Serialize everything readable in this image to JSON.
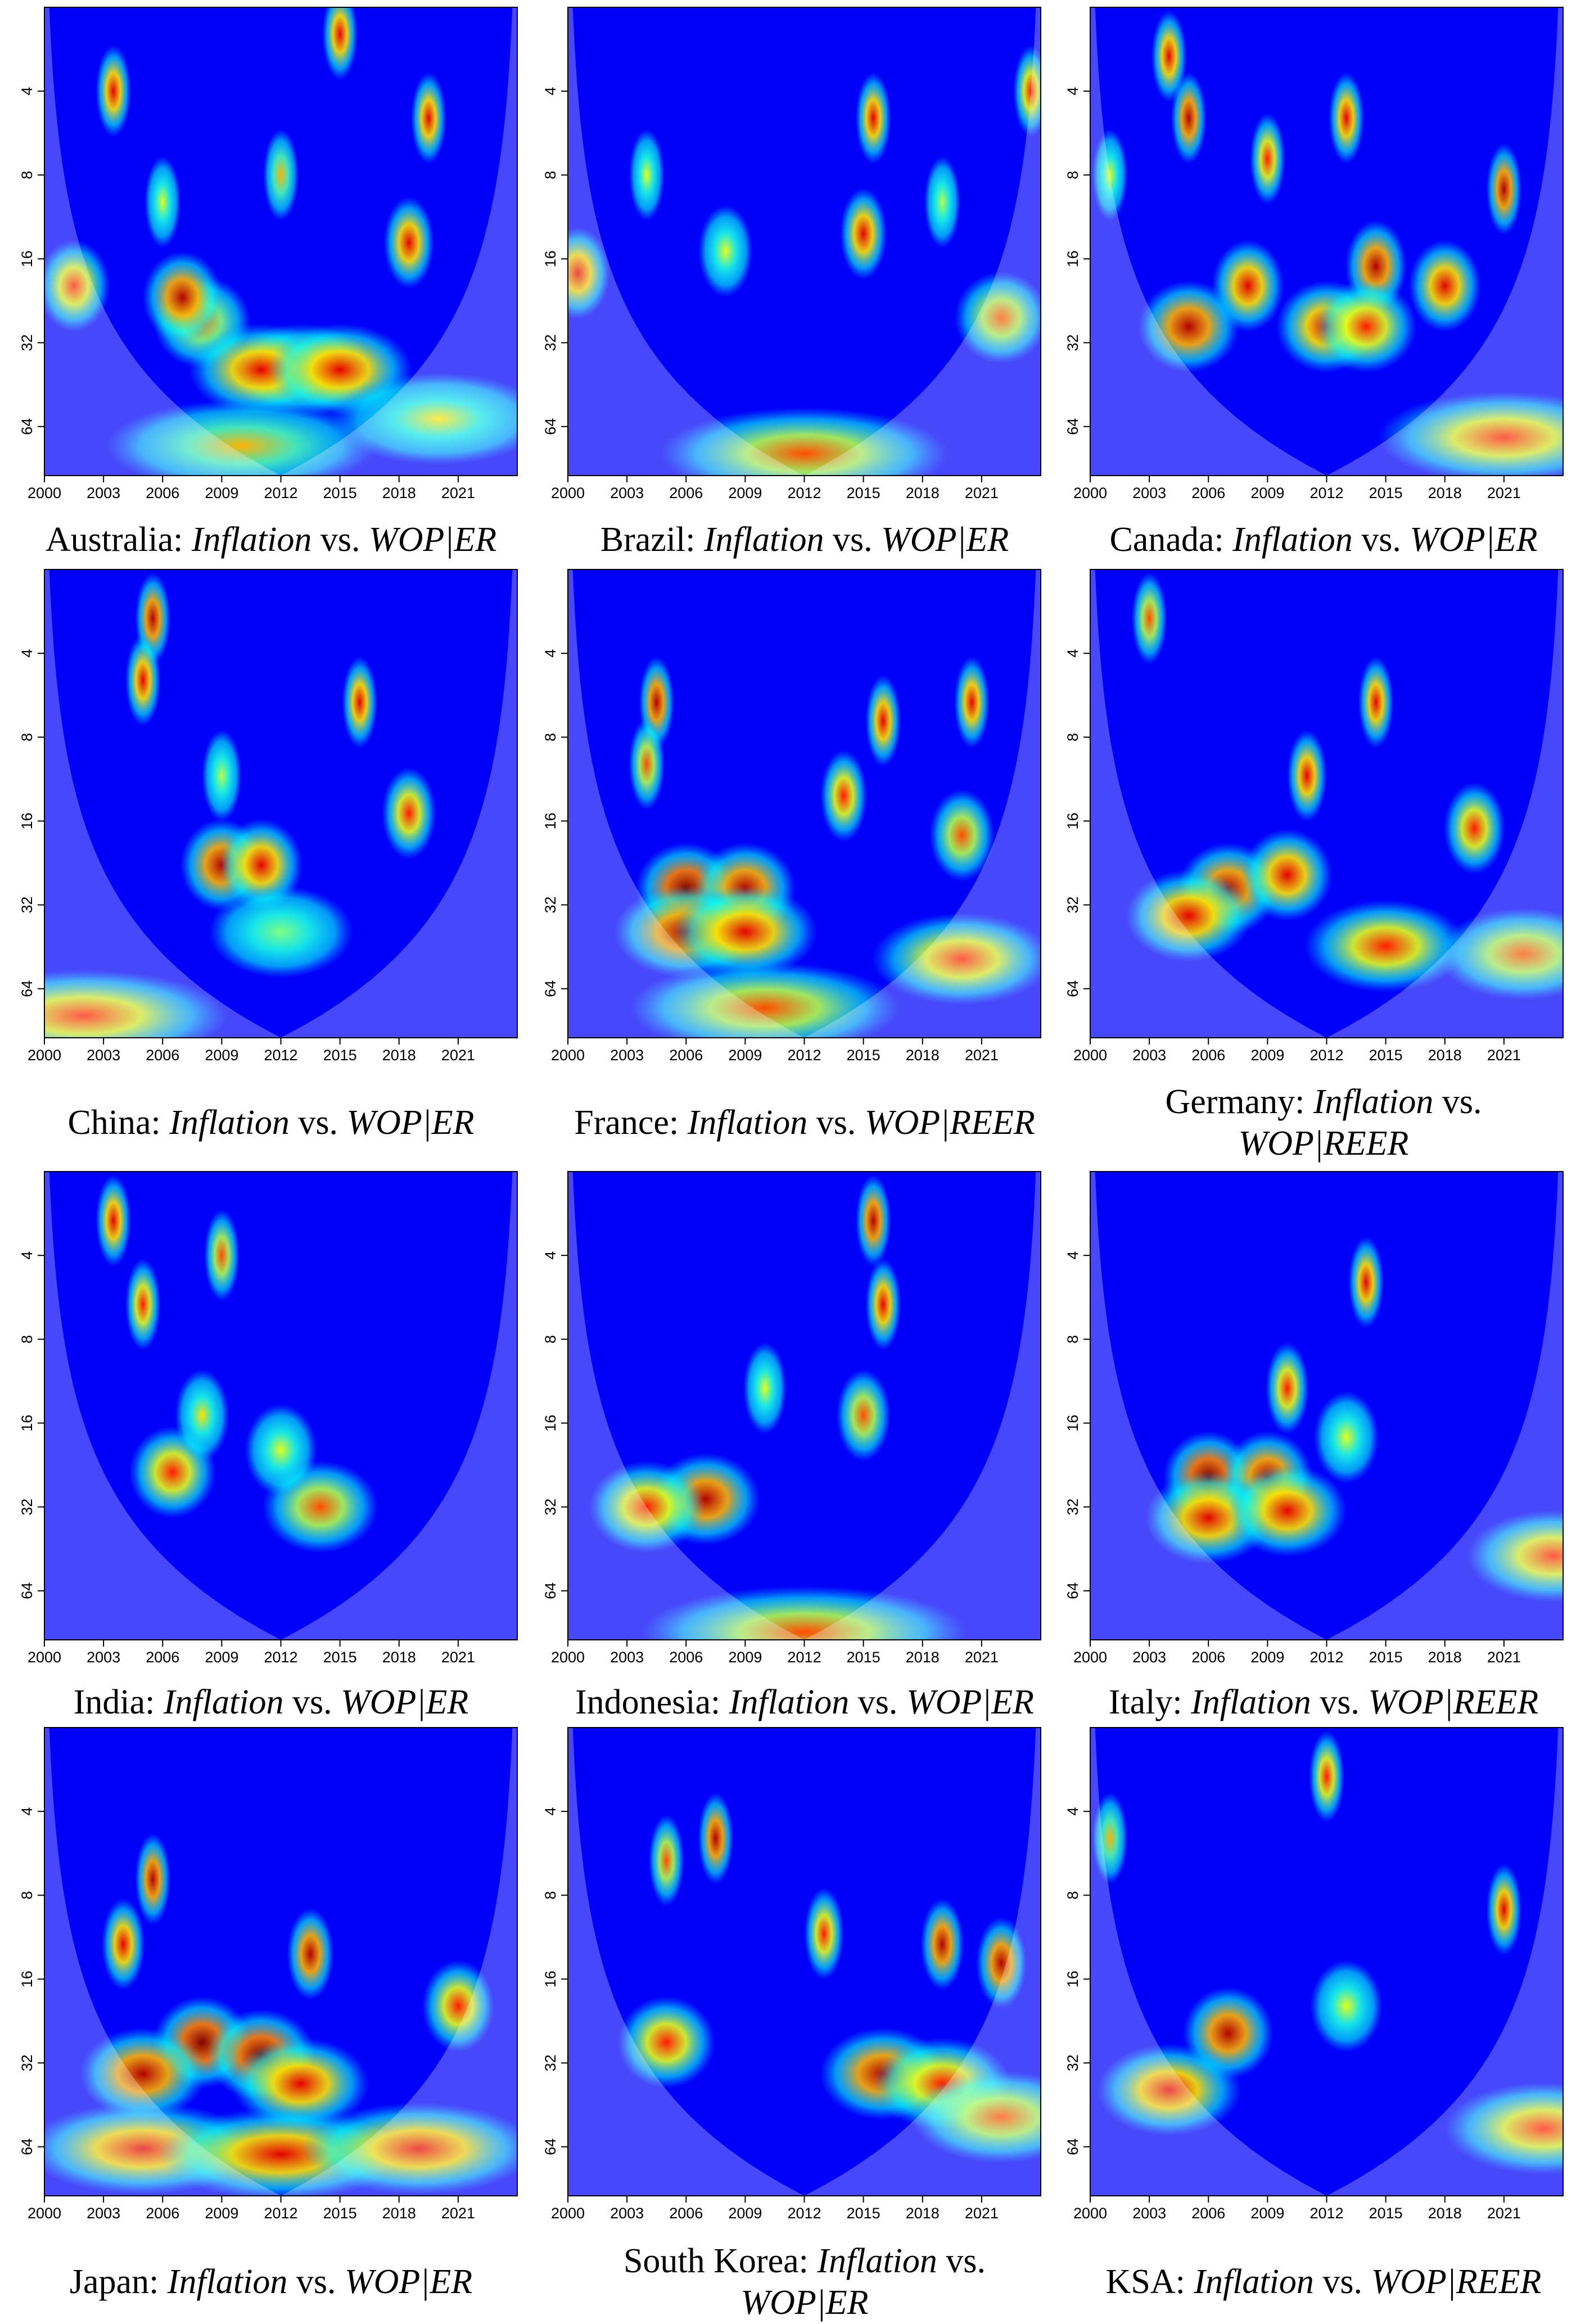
{
  "chart_data": [
    {
      "type": "heatmap",
      "colormap": "jet",
      "log_y": true,
      "y_reversed": true,
      "title": {
        "country": "Australia:",
        "variable": "Inflation",
        "vs": "vs.",
        "pair": "WOP|ER"
      },
      "x": [
        2003.5,
        2019.5,
        2015,
        2008,
        2007,
        2013,
        2011,
        2015,
        2018.5,
        2001.5,
        2012,
        2006,
        2010,
        2020
      ],
      "y": [
        4,
        5,
        2.5,
        27,
        22,
        40,
        40,
        40,
        14,
        20,
        8,
        10,
        75,
        60
      ],
      "values": [
        0.9,
        0.9,
        0.9,
        0.75,
        0.95,
        0.95,
        0.9,
        0.9,
        0.9,
        0.85,
        0.7,
        0.6,
        0.7,
        0.65
      ],
      "xlim": [
        2000,
        2024
      ],
      "ylim": [
        2,
        96
      ],
      "xticks": [
        2000,
        2003,
        2006,
        2009,
        2012,
        2015,
        2018,
        2021
      ],
      "yticks": [
        4,
        8,
        16,
        32,
        64
      ]
    },
    {
      "type": "heatmap",
      "colormap": "jet",
      "log_y": true,
      "y_reversed": true,
      "title": {
        "country": "Brazil:",
        "variable": "Inflation",
        "vs": "vs.",
        "pair": "WOP|ER"
      },
      "x": [
        2015.5,
        2015,
        2000.5,
        2022,
        2023.5,
        2008,
        2012,
        2004,
        2019
      ],
      "y": [
        5,
        13,
        18,
        26,
        4,
        15,
        80,
        8,
        10
      ],
      "values": [
        0.9,
        0.9,
        0.9,
        0.8,
        0.85,
        0.6,
        0.8,
        0.6,
        0.55
      ],
      "xlim": [
        2000,
        2024
      ],
      "ylim": [
        2,
        96
      ],
      "xticks": [
        2000,
        2003,
        2006,
        2009,
        2012,
        2015,
        2018,
        2021
      ],
      "yticks": [
        4,
        8,
        16,
        32,
        64
      ]
    },
    {
      "type": "heatmap",
      "colormap": "jet",
      "log_y": true,
      "y_reversed": true,
      "title": {
        "country": "Canada:",
        "variable": "Inflation",
        "vs": "vs.",
        "pair": "WOP|ER"
      },
      "x": [
        2005,
        2004,
        2013,
        2009,
        2021,
        2014.5,
        2018,
        2008,
        2005,
        2012,
        2014,
        2021,
        2001
      ],
      "y": [
        5,
        3,
        5,
        7,
        9,
        17,
        20,
        20,
        28,
        28,
        28,
        70,
        8
      ],
      "values": [
        0.95,
        0.9,
        0.9,
        0.85,
        0.95,
        0.95,
        0.9,
        0.9,
        0.95,
        0.9,
        0.85,
        0.85,
        0.6
      ],
      "xlim": [
        2000,
        2024
      ],
      "ylim": [
        2,
        96
      ],
      "xticks": [
        2000,
        2003,
        2006,
        2009,
        2012,
        2015,
        2018,
        2021
      ],
      "yticks": [
        4,
        8,
        16,
        32,
        64
      ]
    },
    {
      "type": "heatmap",
      "colormap": "jet",
      "log_y": true,
      "y_reversed": true,
      "title": {
        "country": "China:",
        "variable": "Inflation",
        "vs": "vs.",
        "pair": "WOP|ER"
      },
      "x": [
        2005.5,
        2005,
        2016,
        2009,
        2011,
        2018.5,
        2002,
        2012,
        2009
      ],
      "y": [
        3,
        5,
        6,
        23,
        23,
        15,
        80,
        40,
        11
      ],
      "values": [
        0.95,
        0.9,
        0.9,
        0.95,
        0.9,
        0.85,
        0.85,
        0.5,
        0.55
      ],
      "xlim": [
        2000,
        2024
      ],
      "ylim": [
        2,
        96
      ],
      "xticks": [
        2000,
        2003,
        2006,
        2009,
        2012,
        2015,
        2018,
        2021
      ],
      "yticks": [
        4,
        8,
        16,
        32,
        64
      ]
    },
    {
      "type": "heatmap",
      "colormap": "jet",
      "log_y": true,
      "y_reversed": true,
      "title": {
        "country": "France:",
        "variable": "Inflation",
        "vs": "vs.",
        "pair": "WOP|REER"
      },
      "x": [
        2004.5,
        2016,
        2020.5,
        2006,
        2009,
        2006,
        2009,
        2014,
        2020,
        2020,
        2004,
        2010
      ],
      "y": [
        6,
        7,
        6,
        28,
        28,
        40,
        40,
        13,
        18,
        50,
        10,
        75
      ],
      "values": [
        0.95,
        0.9,
        0.9,
        1,
        0.95,
        0.95,
        0.9,
        0.85,
        0.8,
        0.85,
        0.8,
        0.8
      ],
      "xlim": [
        2000,
        2024
      ],
      "ylim": [
        2,
        96
      ],
      "xticks": [
        2000,
        2003,
        2006,
        2009,
        2012,
        2015,
        2018,
        2021
      ],
      "yticks": [
        4,
        8,
        16,
        32,
        64
      ]
    },
    {
      "type": "heatmap",
      "colormap": "jet",
      "log_y": true,
      "y_reversed": true,
      "title": {
        "country": "Germany:",
        "variable": "Inflation",
        "vs": "vs.",
        "pair": "WOP|REER"
      },
      "x": [
        2014.5,
        2011,
        2007,
        2010,
        2005,
        2015,
        2022,
        2019.5,
        2003
      ],
      "y": [
        6,
        11,
        28,
        25,
        35,
        45,
        48,
        17,
        3
      ],
      "values": [
        0.9,
        0.9,
        0.95,
        0.9,
        0.9,
        0.85,
        0.8,
        0.85,
        0.8
      ],
      "xlim": [
        2000,
        2024
      ],
      "ylim": [
        2,
        96
      ],
      "xticks": [
        2000,
        2003,
        2006,
        2009,
        2012,
        2015,
        2018,
        2021
      ],
      "yticks": [
        4,
        8,
        16,
        32,
        64
      ]
    },
    {
      "type": "heatmap",
      "colormap": "jet",
      "log_y": true,
      "y_reversed": true,
      "title": {
        "country": "India:",
        "variable": "Inflation",
        "vs": "vs.",
        "pair": "WOP|ER"
      },
      "x": [
        2003.5,
        2005,
        2006.5,
        2014,
        2008,
        2012,
        2009
      ],
      "y": [
        3,
        6,
        24,
        32,
        15,
        20,
        4
      ],
      "values": [
        0.9,
        0.85,
        0.85,
        0.8,
        0.65,
        0.6,
        0.8
      ],
      "xlim": [
        2000,
        2024
      ],
      "ylim": [
        2,
        96
      ],
      "xticks": [
        2000,
        2003,
        2006,
        2009,
        2012,
        2015,
        2018,
        2021
      ],
      "yticks": [
        4,
        8,
        16,
        32,
        64
      ]
    },
    {
      "type": "heatmap",
      "colormap": "jet",
      "log_y": true,
      "y_reversed": true,
      "title": {
        "country": "Indonesia:",
        "variable": "Inflation",
        "vs": "vs.",
        "pair": "WOP|ER"
      },
      "x": [
        2015.5,
        2016,
        2007,
        2004,
        2015,
        2010,
        2012
      ],
      "y": [
        3,
        6,
        30,
        32,
        15,
        12,
        90
      ],
      "values": [
        0.95,
        0.9,
        0.95,
        0.85,
        0.8,
        0.6,
        0.8
      ],
      "xlim": [
        2000,
        2024
      ],
      "ylim": [
        2,
        96
      ],
      "xticks": [
        2000,
        2003,
        2006,
        2009,
        2012,
        2015,
        2018,
        2021
      ],
      "yticks": [
        4,
        8,
        16,
        32,
        64
      ]
    },
    {
      "type": "heatmap",
      "colormap": "jet",
      "log_y": true,
      "y_reversed": true,
      "title": {
        "country": "Italy:",
        "variable": "Inflation",
        "vs": "vs.",
        "pair": "WOP|REER"
      },
      "x": [
        2014,
        2010,
        2006,
        2009,
        2006,
        2010,
        2013,
        2023.5
      ],
      "y": [
        5,
        12,
        25,
        25,
        35,
        33,
        18,
        48
      ],
      "values": [
        0.9,
        0.85,
        1,
        0.95,
        0.9,
        0.9,
        0.6,
        0.85
      ],
      "xlim": [
        2000,
        2024
      ],
      "ylim": [
        2,
        96
      ],
      "xticks": [
        2000,
        2003,
        2006,
        2009,
        2012,
        2015,
        2018,
        2021
      ],
      "yticks": [
        4,
        8,
        16,
        32,
        64
      ]
    },
    {
      "type": "heatmap",
      "colormap": "jet",
      "log_y": true,
      "y_reversed": true,
      "title": {
        "country": "Japan:",
        "variable": "Inflation",
        "vs": "vs.",
        "pair": "WOP|ER"
      },
      "x": [
        2005.5,
        2013.5,
        2004,
        2008,
        2011,
        2005,
        2013,
        2005,
        2012,
        2019,
        2021
      ],
      "y": [
        7,
        13,
        12,
        27,
        30,
        35,
        38,
        65,
        68,
        65,
        20
      ],
      "values": [
        0.95,
        0.95,
        0.9,
        1,
        1,
        0.95,
        0.9,
        0.9,
        0.9,
        0.9,
        0.85
      ],
      "xlim": [
        2000,
        2024
      ],
      "ylim": [
        2,
        96
      ],
      "xticks": [
        2000,
        2003,
        2006,
        2009,
        2012,
        2015,
        2018,
        2021
      ],
      "yticks": [
        4,
        8,
        16,
        32,
        64
      ]
    },
    {
      "type": "heatmap",
      "colormap": "jet",
      "log_y": true,
      "y_reversed": true,
      "title": {
        "country": "South Korea:",
        "variable": "Inflation",
        "vs": "vs.",
        "pair": "WOP|ER"
      },
      "x": [
        2007.5,
        2005,
        2013,
        2019,
        2022,
        2005,
        2016,
        2019,
        2022
      ],
      "y": [
        5,
        6,
        11,
        12,
        14,
        27,
        35,
        38,
        50
      ],
      "values": [
        0.95,
        0.8,
        0.85,
        0.95,
        0.95,
        0.85,
        0.95,
        0.85,
        0.8
      ],
      "xlim": [
        2000,
        2024
      ],
      "ylim": [
        2,
        96
      ],
      "xticks": [
        2000,
        2003,
        2006,
        2009,
        2012,
        2015,
        2018,
        2021
      ],
      "yticks": [
        4,
        8,
        16,
        32,
        64
      ]
    },
    {
      "type": "heatmap",
      "colormap": "jet",
      "log_y": true,
      "y_reversed": true,
      "title": {
        "country": "KSA:",
        "variable": "Inflation",
        "vs": "vs.",
        "pair": "WOP|REER"
      },
      "x": [
        2007,
        2004,
        2021,
        2001,
        2012,
        2013,
        2023
      ],
      "y": [
        25,
        40,
        9,
        5,
        3,
        20,
        55
      ],
      "values": [
        0.95,
        0.9,
        0.9,
        0.7,
        0.85,
        0.6,
        0.85
      ],
      "xlim": [
        2000,
        2024
      ],
      "ylim": [
        2,
        96
      ],
      "xticks": [
        2000,
        2003,
        2006,
        2009,
        2012,
        2015,
        2018,
        2021
      ],
      "yticks": [
        4,
        8,
        16,
        32,
        64
      ]
    }
  ]
}
